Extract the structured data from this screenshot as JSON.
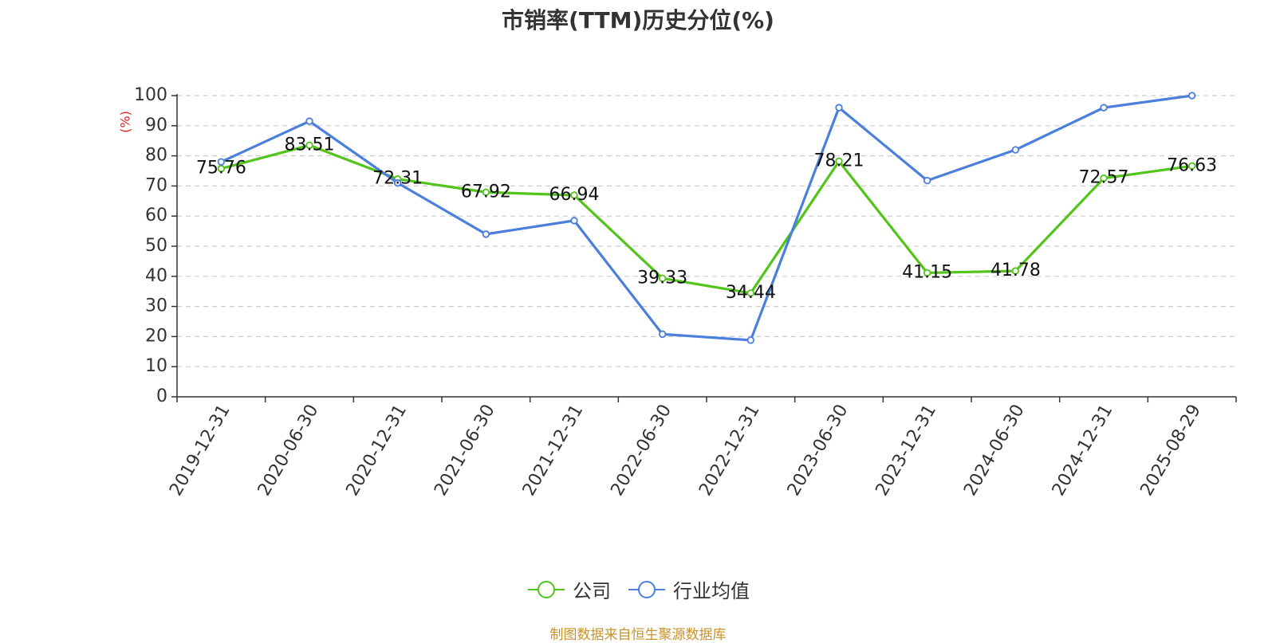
{
  "chart_data": {
    "type": "line",
    "title": "市销率(TTM)历史分位(%)",
    "ylabel": "(%)",
    "xlabel": "",
    "categories": [
      "2019-12-31",
      "2020-06-30",
      "2020-12-31",
      "2021-06-30",
      "2021-12-31",
      "2022-06-30",
      "2022-12-31",
      "2023-06-30",
      "2023-12-31",
      "2024-06-30",
      "2024-12-31",
      "2025-08-29"
    ],
    "ylim": [
      0,
      100
    ],
    "yticks": [
      0,
      10,
      20,
      30,
      40,
      50,
      60,
      70,
      80,
      90,
      100
    ],
    "grid": true,
    "legend_position": "bottom",
    "series": [
      {
        "name": "公司",
        "color": "#52c41a",
        "values": [
          75.76,
          83.51,
          72.31,
          67.92,
          66.94,
          39.33,
          34.44,
          78.21,
          41.15,
          41.78,
          72.57,
          76.63
        ],
        "labels": [
          "75.76",
          "83.51",
          "72.31",
          "67.92",
          "66.94",
          "39.33",
          "34.44",
          "78.21",
          "41.15",
          "41.78",
          "72.57",
          "76.63"
        ]
      },
      {
        "name": "行业均值",
        "color": "#4a7fdc",
        "values": [
          78,
          91.5,
          71,
          54,
          58.5,
          20.8,
          18.8,
          96,
          71.8,
          82,
          96,
          100
        ]
      }
    ]
  },
  "source": "制图数据来自恒生聚源数据库"
}
